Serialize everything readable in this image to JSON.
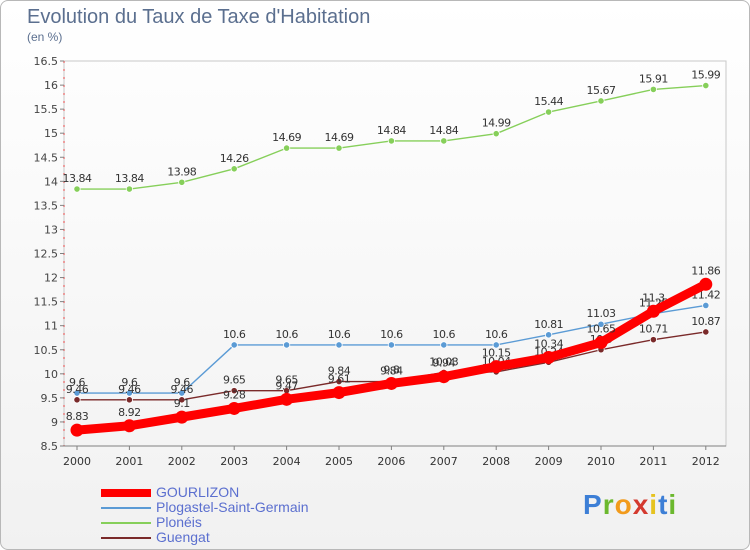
{
  "title": "Evolution du Taux de Taxe d'Habitation",
  "unit_label": "(en %)",
  "logo": {
    "text": "Proxiti",
    "letter_colors": [
      "#3d7fd6",
      "#6bb82e",
      "#f29b1c",
      "#d43a2f",
      "#e6c320",
      "#3d7fd6",
      "#6bb82e"
    ]
  },
  "chart_data": {
    "type": "line",
    "title": "Evolution du Taux de Taxe d'Habitation",
    "ylabel": "(en %)",
    "xlabel": "",
    "x": [
      "2000",
      "2001",
      "2002",
      "2003",
      "2004",
      "2005",
      "2006",
      "2007",
      "2008",
      "2009",
      "2010",
      "2011",
      "2012"
    ],
    "ylim": [
      8.5,
      16.5
    ],
    "yticks": [
      "8.5",
      "9",
      "9.5",
      "10",
      "10.5",
      "11",
      "11.5",
      "12",
      "12.5",
      "13",
      "13.5",
      "14",
      "14.5",
      "15",
      "15.5",
      "16",
      "16.5"
    ],
    "grid": false,
    "legend": "bottom-left",
    "series": [
      {
        "name": "GOURLIZON",
        "color": "#ff0000",
        "emphasis": true,
        "values": [
          8.83,
          8.92,
          9.1,
          9.28,
          9.47,
          9.61,
          9.8,
          9.94,
          10.15,
          10.34,
          10.65,
          11.3,
          11.86
        ],
        "labels": [
          "8.83",
          "8.92",
          "9.1",
          "9.28",
          "9.47",
          "9.61",
          "9.8",
          "9.94",
          "10.15",
          "10.34",
          "10.65",
          "11.3",
          "11.86"
        ]
      },
      {
        "name": "Plogastel-Saint-Germain",
        "color": "#5b9bd5",
        "emphasis": false,
        "values": [
          9.6,
          9.6,
          9.6,
          10.6,
          10.6,
          10.6,
          10.6,
          10.6,
          10.6,
          10.81,
          11.03,
          11.25,
          11.42
        ],
        "labels": [
          "9.6",
          "9.6",
          "9.6",
          "10.6",
          "10.6",
          "10.6",
          "10.6",
          "10.6",
          "10.6",
          "10.81",
          "11.03",
          "11.25",
          "11.42"
        ]
      },
      {
        "name": "Plonéis",
        "color": "#86cf5a",
        "emphasis": false,
        "values": [
          13.84,
          13.84,
          13.98,
          14.26,
          14.69,
          14.69,
          14.84,
          14.84,
          14.99,
          15.44,
          15.67,
          15.91,
          15.99
        ],
        "labels": [
          "13.84",
          "13.84",
          "13.98",
          "14.26",
          "14.69",
          "14.69",
          "14.84",
          "14.84",
          "14.99",
          "15.44",
          "15.67",
          "15.91",
          "15.99"
        ]
      },
      {
        "name": "Guengat",
        "color": "#7a2a2a",
        "emphasis": false,
        "values": [
          9.46,
          9.46,
          9.46,
          9.65,
          9.65,
          9.84,
          9.84,
          10.03,
          10.04,
          10.24,
          10.5,
          10.71,
          10.87
        ],
        "labels": [
          "9.46",
          "9.46",
          "9.46",
          "9.65",
          "9.65",
          "9.84",
          "9.84",
          "10.03",
          "10.04",
          "10.24",
          "10.5",
          "10.71",
          "10.87"
        ]
      }
    ]
  }
}
